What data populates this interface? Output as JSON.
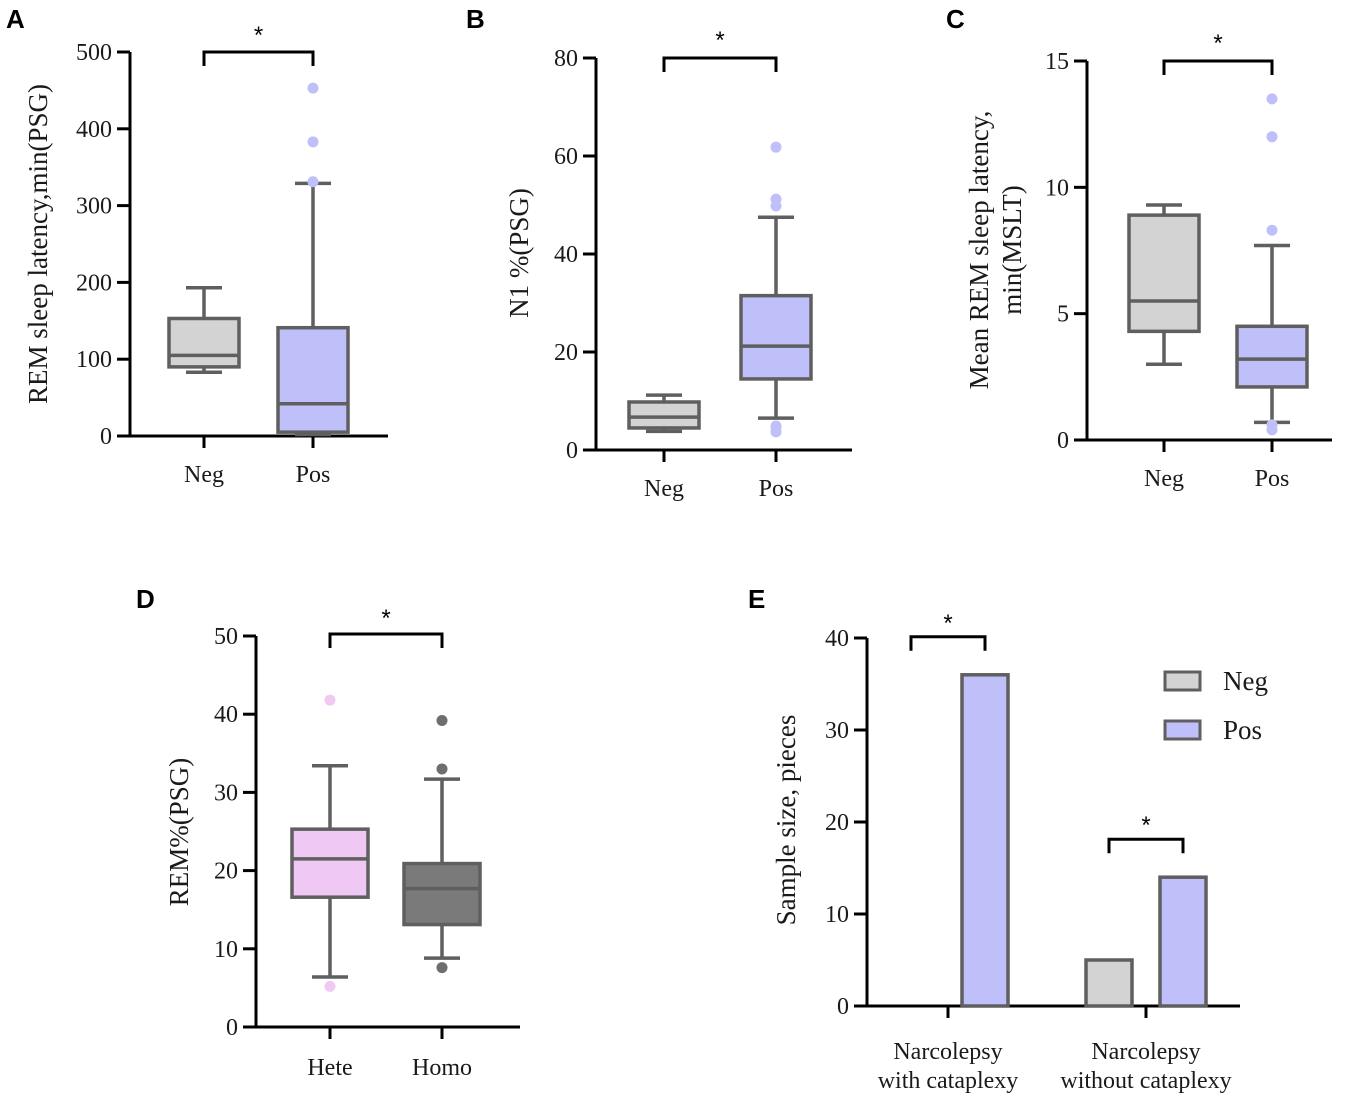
{
  "chart_data": [
    {
      "panel": "A",
      "type": "box",
      "ylabel": "REM sleep latency,min(PSG)",
      "ylim": [
        0,
        500
      ],
      "yticks": [
        0,
        100,
        200,
        300,
        400,
        500
      ],
      "categories": [
        "Neg",
        "Pos"
      ],
      "boxes": [
        {
          "name": "Neg",
          "whisker_low": 83,
          "q1": 90,
          "median": 105,
          "q3": 153,
          "whisker_high": 193,
          "outliers": [],
          "fill": "#d3d3d3"
        },
        {
          "name": "Pos",
          "whisker_low": 2,
          "q1": 5,
          "median": 42,
          "q3": 141,
          "whisker_high": 329,
          "outliers": [
            331,
            383,
            453
          ],
          "fill": "#bfbff9"
        }
      ],
      "significance": [
        {
          "from": "Neg",
          "to": "Pos",
          "label": "*"
        }
      ]
    },
    {
      "panel": "B",
      "type": "box",
      "ylabel": "N1 %(PSG)",
      "ylim": [
        0,
        80
      ],
      "yticks": [
        0,
        20,
        40,
        60,
        80
      ],
      "categories": [
        "Neg",
        "Pos"
      ],
      "boxes": [
        {
          "name": "Neg",
          "whisker_low": 3.8,
          "q1": 4.5,
          "median": 6.7,
          "q3": 9.8,
          "whisker_high": 11.2,
          "outliers": [],
          "fill": "#d3d3d3"
        },
        {
          "name": "Pos",
          "whisker_low": 6.5,
          "q1": 14.5,
          "median": 21.2,
          "q3": 31.5,
          "whisker_high": 47.5,
          "outliers": [
            3.7,
            4.8,
            4.9,
            49.8,
            51.2,
            61.8
          ],
          "fill": "#bfbff9"
        }
      ],
      "significance": [
        {
          "from": "Neg",
          "to": "Pos",
          "label": "*"
        }
      ]
    },
    {
      "panel": "C",
      "type": "box",
      "ylabel_lines": [
        "Mean REM sleep latency,",
        "min(MSLT)"
      ],
      "ylim": [
        0,
        15
      ],
      "yticks": [
        0,
        5,
        10,
        15
      ],
      "categories": [
        "Neg",
        "Pos"
      ],
      "boxes": [
        {
          "name": "Neg",
          "whisker_low": 3.0,
          "q1": 4.3,
          "median": 5.5,
          "q3": 8.9,
          "whisker_high": 9.3,
          "outliers": [],
          "fill": "#d3d3d3"
        },
        {
          "name": "Pos",
          "whisker_low": 0.7,
          "q1": 2.1,
          "median": 3.2,
          "q3": 4.5,
          "whisker_high": 7.7,
          "outliers": [
            0.4,
            0.6,
            8.3,
            12.0,
            13.5
          ],
          "fill": "#bfbff9"
        }
      ],
      "significance": [
        {
          "from": "Neg",
          "to": "Pos",
          "label": "*"
        }
      ]
    },
    {
      "panel": "D",
      "type": "box",
      "ylabel": "REM%(PSG)",
      "ylim": [
        0,
        50
      ],
      "yticks": [
        0,
        10,
        20,
        30,
        40,
        50
      ],
      "categories": [
        "Hete",
        "Homo"
      ],
      "boxes": [
        {
          "name": "Hete",
          "whisker_low": 6.4,
          "q1": 16.6,
          "median": 21.5,
          "q3": 25.3,
          "whisker_high": 33.4,
          "outliers": [
            5.2,
            41.8
          ],
          "fill": "#f0c8f4",
          "outlier_color": "#f0c8f4"
        },
        {
          "name": "Homo",
          "whisker_low": 8.8,
          "q1": 13.1,
          "median": 17.7,
          "q3": 20.9,
          "whisker_high": 31.7,
          "outliers": [
            7.6,
            33.0,
            39.2
          ],
          "fill": "#7a7a7a",
          "outlier_color": "#6e6e6e"
        }
      ],
      "significance": [
        {
          "from": "Hete",
          "to": "Homo",
          "label": "*"
        }
      ]
    },
    {
      "panel": "E",
      "type": "bar",
      "ylabel": "Sample size, pieces",
      "ylim": [
        0,
        40
      ],
      "yticks": [
        0,
        10,
        20,
        30,
        40
      ],
      "categories": [
        [
          "Narcolepsy",
          "with cataplexy"
        ],
        [
          "Narcolepsy",
          "without cataplexy"
        ]
      ],
      "series": [
        {
          "name": "Neg",
          "values": [
            0,
            5
          ],
          "color": "#d3d3d3"
        },
        {
          "name": "Pos",
          "values": [
            36,
            14
          ],
          "color": "#bfbff9"
        }
      ],
      "legend": {
        "placement": "top-right",
        "entries": [
          "Neg",
          "Pos"
        ]
      },
      "significance": [
        {
          "group": 0,
          "label": "*"
        },
        {
          "group": 1,
          "label": "*"
        }
      ]
    }
  ]
}
